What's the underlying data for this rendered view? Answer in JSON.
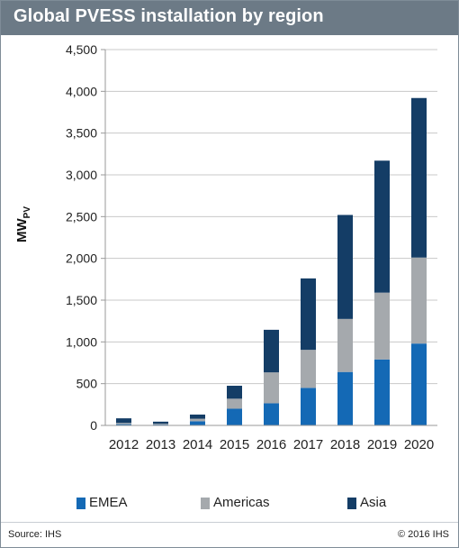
{
  "title": "Global PVESS installation by region",
  "footer": {
    "source": "Source: IHS",
    "copyright": "© 2016 IHS"
  },
  "colors": {
    "EMEA": "#1469b5",
    "Americas": "#a5a9ad",
    "Asia": "#143d66",
    "gridline": "#c8c8c8",
    "axis": "#999999",
    "title_bar": "#6c7a86"
  },
  "chart_data": {
    "type": "bar",
    "stacked": true,
    "ylabel": "MW",
    "ylabel_subscript": "PV",
    "xlabel": "",
    "ylim": [
      0,
      4500
    ],
    "yticks": [
      0,
      500,
      1000,
      1500,
      2000,
      2500,
      3000,
      3500,
      4000,
      4500
    ],
    "ytick_labels": [
      "0",
      "500",
      "1,000",
      "1,500",
      "2,000",
      "2,500",
      "3,000",
      "3,500",
      "4,000",
      "4,500"
    ],
    "grid": true,
    "legend_position": "bottom",
    "categories": [
      "2012",
      "2013",
      "2014",
      "2015",
      "2016",
      "2017",
      "2018",
      "2019",
      "2020"
    ],
    "series": [
      {
        "name": "EMEA",
        "values": [
          15,
          10,
          50,
          200,
          265,
          450,
          640,
          790,
          980
        ]
      },
      {
        "name": "Americas",
        "values": [
          15,
          10,
          30,
          120,
          370,
          455,
          635,
          800,
          1030
        ]
      },
      {
        "name": "Asia",
        "values": [
          55,
          25,
          50,
          155,
          510,
          855,
          1245,
          1580,
          1910
        ]
      }
    ]
  }
}
